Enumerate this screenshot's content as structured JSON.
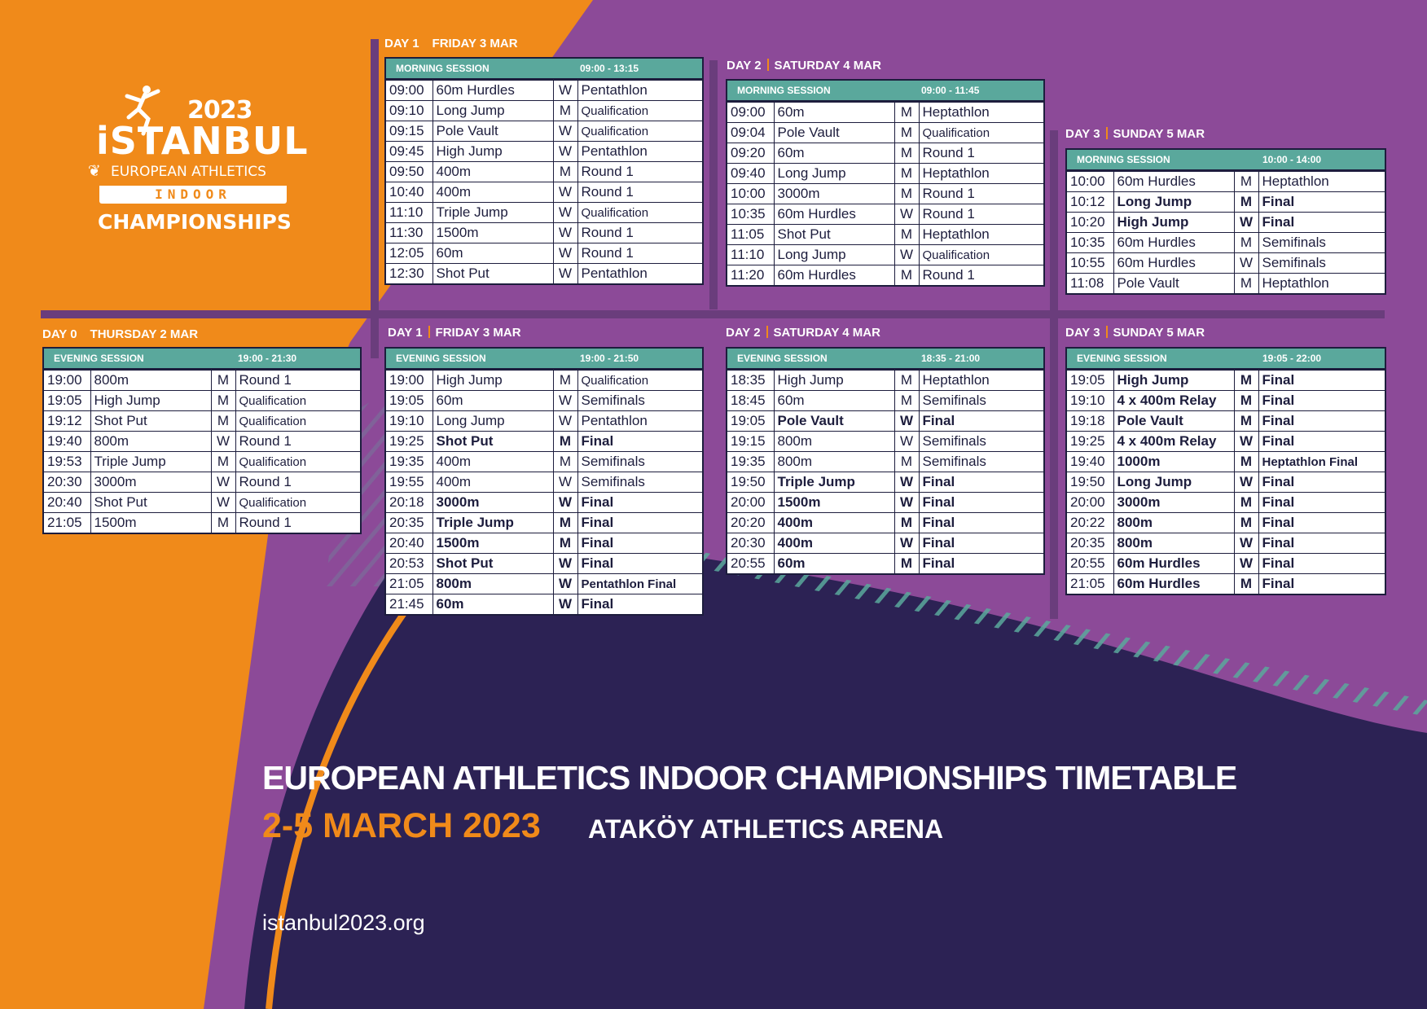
{
  "logo": {
    "year": "2023",
    "city": "iSTANBUL",
    "org": "EUROPEAN ATHLETICS",
    "indoor": "INDOOR",
    "championships": "CHAMPIONSHIPS"
  },
  "colors": {
    "orange": "#f08a1a",
    "purple": "#8c4a98",
    "navy": "#2c2254",
    "teal": "#5aa89c",
    "line": "#1d1d3d"
  },
  "sessions": [
    {
      "day": "DAY 0",
      "date": "THURSDAY 2 MAR",
      "session": "EVENING SESSION",
      "time": "19:00 - 21:30",
      "rows": [
        {
          "time": "19:00",
          "event": "800m",
          "gender": "M",
          "round": "Round 1",
          "bold": false
        },
        {
          "time": "19:05",
          "event": "High Jump",
          "gender": "M",
          "round": "Qualification",
          "bold": false
        },
        {
          "time": "19:12",
          "event": "Shot Put",
          "gender": "M",
          "round": "Qualification",
          "bold": false
        },
        {
          "time": "19:40",
          "event": "800m",
          "gender": "W",
          "round": "Round 1",
          "bold": false
        },
        {
          "time": "19:53",
          "event": "Triple Jump",
          "gender": "M",
          "round": "Qualification",
          "bold": false
        },
        {
          "time": "20:30",
          "event": "3000m",
          "gender": "W",
          "round": "Round 1",
          "bold": false
        },
        {
          "time": "20:40",
          "event": "Shot Put",
          "gender": "W",
          "round": "Qualification",
          "bold": false
        },
        {
          "time": "21:05",
          "event": "1500m",
          "gender": "M",
          "round": "Round 1",
          "bold": false
        }
      ]
    },
    {
      "day": "DAY 1",
      "date": "FRIDAY 3 MAR",
      "session": "MORNING SESSION",
      "time": "09:00 - 13:15",
      "rows": [
        {
          "time": "09:00",
          "event": "60m Hurdles",
          "gender": "W",
          "round": "Pentathlon",
          "bold": false
        },
        {
          "time": "09:10",
          "event": "Long Jump",
          "gender": "M",
          "round": "Qualification",
          "bold": false
        },
        {
          "time": "09:15",
          "event": "Pole Vault",
          "gender": "W",
          "round": "Qualification",
          "bold": false
        },
        {
          "time": "09:45",
          "event": "High Jump",
          "gender": "W",
          "round": "Pentathlon",
          "bold": false
        },
        {
          "time": "09:50",
          "event": "400m",
          "gender": "M",
          "round": "Round 1",
          "bold": false
        },
        {
          "time": "10:40",
          "event": "400m",
          "gender": "W",
          "round": "Round 1",
          "bold": false
        },
        {
          "time": "11:10",
          "event": "Triple Jump",
          "gender": "W",
          "round": "Qualification",
          "bold": false
        },
        {
          "time": "11:30",
          "event": "1500m",
          "gender": "W",
          "round": "Round 1",
          "bold": false
        },
        {
          "time": "12:05",
          "event": "60m",
          "gender": "W",
          "round": "Round 1",
          "bold": false
        },
        {
          "time": "12:30",
          "event": "Shot Put",
          "gender": "W",
          "round": "Pentathlon",
          "bold": false
        }
      ]
    },
    {
      "day": "DAY 1",
      "date": "FRIDAY 3 MAR",
      "session": "EVENING SESSION",
      "time": "19:00 - 21:50",
      "rows": [
        {
          "time": "19:00",
          "event": "High Jump",
          "gender": "M",
          "round": "Qualification",
          "bold": false
        },
        {
          "time": "19:05",
          "event": "60m",
          "gender": "W",
          "round": "Semifinals",
          "bold": false
        },
        {
          "time": "19:10",
          "event": "Long Jump",
          "gender": "W",
          "round": "Pentathlon",
          "bold": false
        },
        {
          "time": "19:25",
          "event": "Shot Put",
          "gender": "M",
          "round": "Final",
          "bold": true
        },
        {
          "time": "19:35",
          "event": "400m",
          "gender": "M",
          "round": "Semifinals",
          "bold": false
        },
        {
          "time": "19:55",
          "event": "400m",
          "gender": "W",
          "round": "Semifinals",
          "bold": false
        },
        {
          "time": "20:18",
          "event": "3000m",
          "gender": "W",
          "round": "Final",
          "bold": true
        },
        {
          "time": "20:35",
          "event": "Triple Jump",
          "gender": "M",
          "round": "Final",
          "bold": true
        },
        {
          "time": "20:40",
          "event": "1500m",
          "gender": "M",
          "round": "Final",
          "bold": true
        },
        {
          "time": "20:53",
          "event": "Shot Put",
          "gender": "W",
          "round": "Final",
          "bold": true
        },
        {
          "time": "21:05",
          "event": "800m",
          "gender": "W",
          "round": "Pentathlon Final",
          "bold": true
        },
        {
          "time": "21:45",
          "event": "60m",
          "gender": "W",
          "round": "Final",
          "bold": true
        }
      ]
    },
    {
      "day": "DAY 2",
      "date": "SATURDAY 4 MAR",
      "session": "MORNING SESSION",
      "time": "09:00 - 11:45",
      "rows": [
        {
          "time": "09:00",
          "event": "60m",
          "gender": "M",
          "round": "Heptathlon",
          "bold": false
        },
        {
          "time": "09:04",
          "event": "Pole Vault",
          "gender": "M",
          "round": "Qualification",
          "bold": false
        },
        {
          "time": "09:20",
          "event": "60m",
          "gender": "M",
          "round": "Round 1",
          "bold": false
        },
        {
          "time": "09:40",
          "event": "Long Jump",
          "gender": "M",
          "round": "Heptathlon",
          "bold": false
        },
        {
          "time": "10:00",
          "event": "3000m",
          "gender": "M",
          "round": "Round 1",
          "bold": false
        },
        {
          "time": "10:35",
          "event": "60m Hurdles",
          "gender": "W",
          "round": "Round 1",
          "bold": false
        },
        {
          "time": "11:05",
          "event": "Shot Put",
          "gender": "M",
          "round": "Heptathlon",
          "bold": false
        },
        {
          "time": "11:10",
          "event": "Long Jump",
          "gender": "W",
          "round": "Qualification",
          "bold": false
        },
        {
          "time": "11:20",
          "event": "60m Hurdles",
          "gender": "M",
          "round": "Round 1",
          "bold": false
        }
      ]
    },
    {
      "day": "DAY 2",
      "date": "SATURDAY 4 MAR",
      "session": "EVENING SESSION",
      "time": "18:35 - 21:00",
      "rows": [
        {
          "time": "18:35",
          "event": "High Jump",
          "gender": "M",
          "round": "Heptathlon",
          "bold": false
        },
        {
          "time": "18:45",
          "event": "60m",
          "gender": "M",
          "round": "Semifinals",
          "bold": false
        },
        {
          "time": "19:05",
          "event": "Pole Vault",
          "gender": "W",
          "round": "Final",
          "bold": true
        },
        {
          "time": "19:15",
          "event": "800m",
          "gender": "W",
          "round": "Semifinals",
          "bold": false
        },
        {
          "time": "19:35",
          "event": "800m",
          "gender": "M",
          "round": "Semifinals",
          "bold": false
        },
        {
          "time": "19:50",
          "event": "Triple Jump",
          "gender": "W",
          "round": "Final",
          "bold": true
        },
        {
          "time": "20:00",
          "event": "1500m",
          "gender": "W",
          "round": "Final",
          "bold": true
        },
        {
          "time": "20:20",
          "event": "400m",
          "gender": "M",
          "round": "Final",
          "bold": true
        },
        {
          "time": "20:30",
          "event": "400m",
          "gender": "W",
          "round": "Final",
          "bold": true
        },
        {
          "time": "20:55",
          "event": "60m",
          "gender": "M",
          "round": "Final",
          "bold": true
        }
      ]
    },
    {
      "day": "DAY 3",
      "date": "SUNDAY 5 MAR",
      "session": "MORNING SESSION",
      "time": "10:00 - 14:00",
      "rows": [
        {
          "time": "10:00",
          "event": "60m Hurdles",
          "gender": "M",
          "round": "Heptathlon",
          "bold": false
        },
        {
          "time": "10:12",
          "event": "Long Jump",
          "gender": "M",
          "round": "Final",
          "bold": true
        },
        {
          "time": "10:20",
          "event": "High Jump",
          "gender": "W",
          "round": "Final",
          "bold": true
        },
        {
          "time": "10:35",
          "event": "60m Hurdles",
          "gender": "M",
          "round": "Semifinals",
          "bold": false
        },
        {
          "time": "10:55",
          "event": "60m Hurdles",
          "gender": "W",
          "round": "Semifinals",
          "bold": false
        },
        {
          "time": "11:08",
          "event": "Pole Vault",
          "gender": "M",
          "round": "Heptathlon",
          "bold": false
        }
      ]
    },
    {
      "day": "DAY 3",
      "date": "SUNDAY 5 MAR",
      "session": "EVENING SESSION",
      "time": "19:05 - 22:00",
      "rows": [
        {
          "time": "19:05",
          "event": "High Jump",
          "gender": "M",
          "round": "Final",
          "bold": true
        },
        {
          "time": "19:10",
          "event": "4 x 400m Relay",
          "gender": "M",
          "round": "Final",
          "bold": true
        },
        {
          "time": "19:18",
          "event": "Pole Vault",
          "gender": "M",
          "round": "Final",
          "bold": true
        },
        {
          "time": "19:25",
          "event": "4 x 400m Relay",
          "gender": "W",
          "round": "Final",
          "bold": true
        },
        {
          "time": "19:40",
          "event": "1000m",
          "gender": "M",
          "round": "Heptathlon Final",
          "bold": true
        },
        {
          "time": "19:50",
          "event": "Long Jump",
          "gender": "W",
          "round": "Final",
          "bold": true
        },
        {
          "time": "20:00",
          "event": "3000m",
          "gender": "M",
          "round": "Final",
          "bold": true
        },
        {
          "time": "20:22",
          "event": "800m",
          "gender": "M",
          "round": "Final",
          "bold": true
        },
        {
          "time": "20:35",
          "event": "800m",
          "gender": "W",
          "round": "Final",
          "bold": true
        },
        {
          "time": "20:55",
          "event": "60m Hurdles",
          "gender": "W",
          "round": "Final",
          "bold": true
        },
        {
          "time": "21:05",
          "event": "60m Hurdles",
          "gender": "M",
          "round": "Final",
          "bold": true
        }
      ]
    }
  ],
  "footer": {
    "title": "EUROPEAN ATHLETICS INDOOR CHAMPIONSHIPS TIMETABLE",
    "dates": "2-5 MARCH 2023",
    "venue": "ATAKÖY ATHLETICS ARENA",
    "url": "istanbul2023.org"
  }
}
